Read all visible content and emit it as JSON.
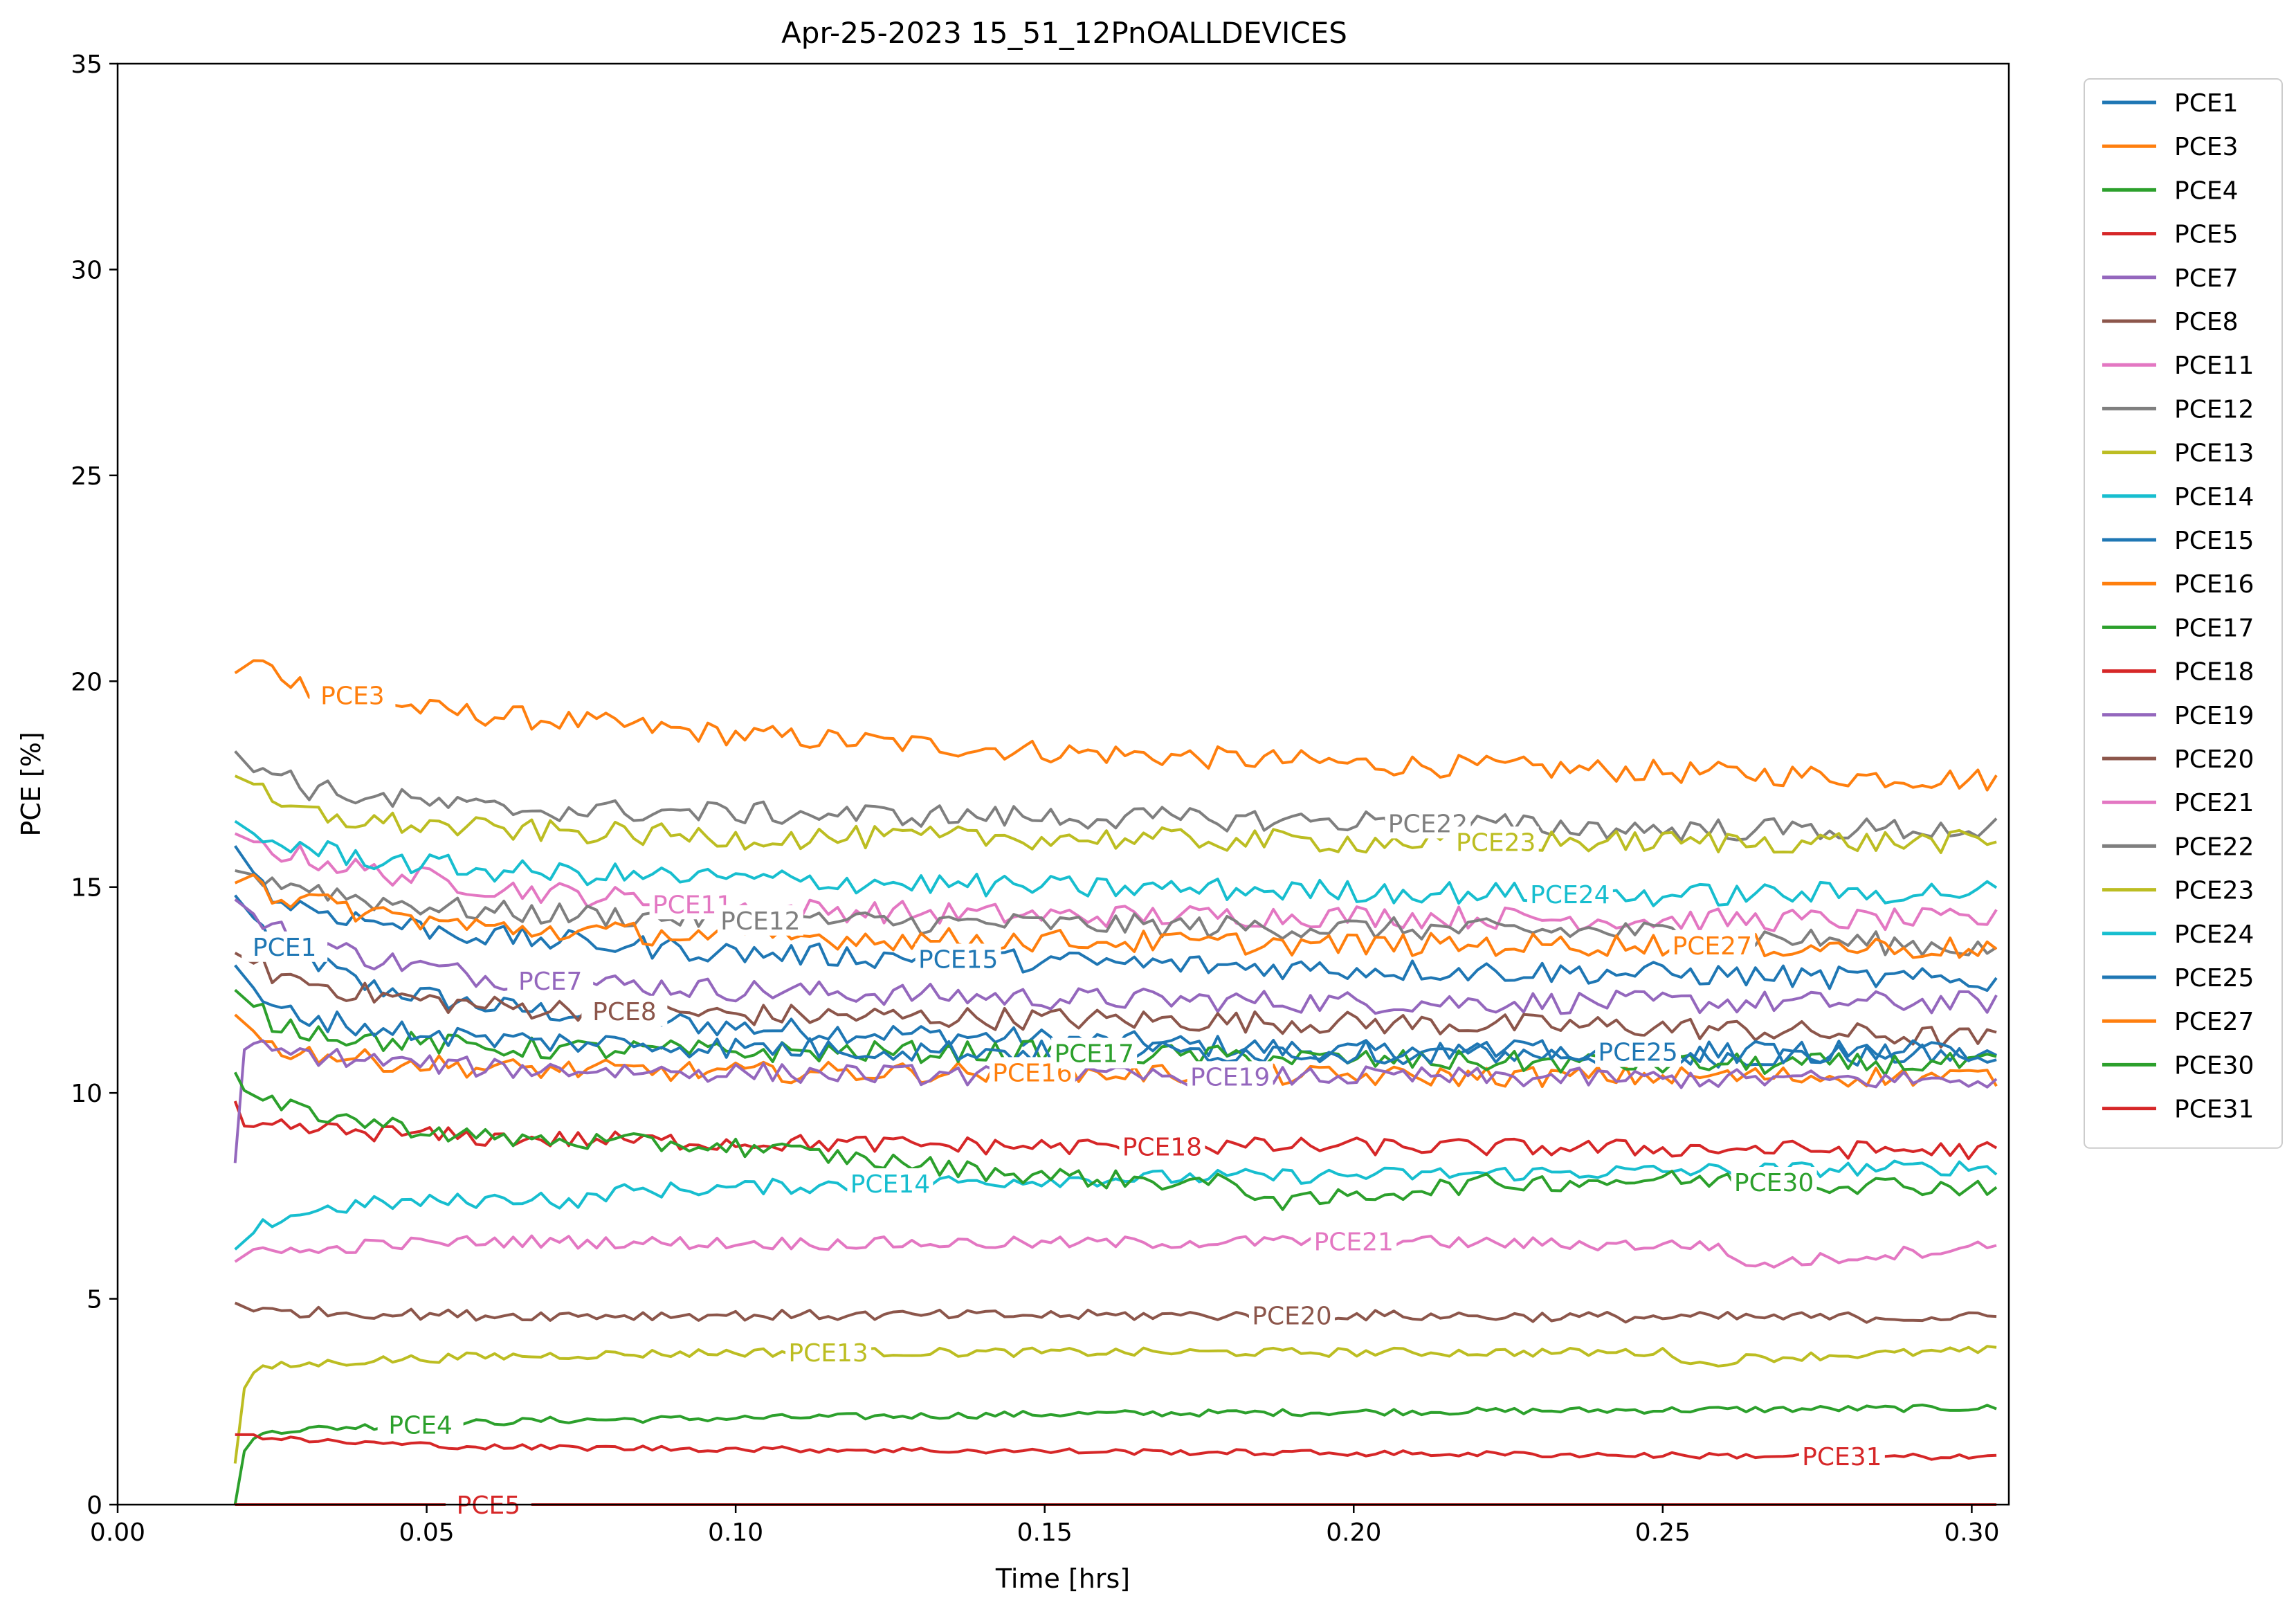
{
  "chart_data": {
    "type": "line",
    "title": "Apr-25-2023 15_51_12PnOALLDEVICES",
    "xlabel": "Time [hrs]",
    "ylabel": "PCE [%]",
    "xlim": [
      0.0,
      0.306
    ],
    "ylim": [
      0,
      35
    ],
    "xticks": [
      "0.00",
      "0.05",
      "0.10",
      "0.15",
      "0.20",
      "0.25",
      "0.30"
    ],
    "yticks": [
      "0",
      "5",
      "10",
      "15",
      "20",
      "25",
      "30",
      "35"
    ],
    "grid": false,
    "legend_position": "outside-right",
    "series": [
      {
        "name": "PCE1",
        "color": "#1f77b4",
        "label": "PCE1",
        "x": [
          0.019,
          0.025,
          0.04,
          0.06,
          0.1,
          0.15,
          0.2,
          0.25,
          0.304
        ],
        "y": [
          14.8,
          13.7,
          12.6,
          12.1,
          11.6,
          11.3,
          11.0,
          10.9,
          10.9
        ],
        "label_x": 0.027
      },
      {
        "name": "PCE3",
        "color": "#ff7f0e",
        "label": "PCE3",
        "x": [
          0.019,
          0.022,
          0.03,
          0.05,
          0.1,
          0.15,
          0.2,
          0.25,
          0.304
        ],
        "y": [
          20.2,
          20.5,
          19.9,
          19.3,
          18.7,
          18.3,
          18.0,
          17.8,
          17.6
        ],
        "label_x": 0.038
      },
      {
        "name": "PCE4",
        "color": "#2ca02c",
        "label": "PCE4",
        "x": [
          0.019,
          0.02,
          0.022,
          0.025,
          0.04,
          0.07,
          0.1,
          0.15,
          0.2,
          0.25,
          0.304
        ],
        "y": [
          0.0,
          1.2,
          1.6,
          1.8,
          1.9,
          2.05,
          2.1,
          2.2,
          2.25,
          2.3,
          2.35
        ],
        "label_x": 0.049
      },
      {
        "name": "PCE5",
        "color": "#d62728",
        "label": "PCE5",
        "x": [
          0.019,
          0.304
        ],
        "y": [
          0.0,
          0.0
        ],
        "label_x": 0.06
      },
      {
        "name": "PCE7",
        "color": "#9467bd",
        "label": "PCE7",
        "x": [
          0.019,
          0.025,
          0.04,
          0.06,
          0.1,
          0.15,
          0.2,
          0.25,
          0.304
        ],
        "y": [
          14.7,
          14.0,
          13.3,
          12.8,
          12.5,
          12.3,
          12.2,
          12.2,
          12.2
        ],
        "label_x": 0.07
      },
      {
        "name": "PCE8",
        "color": "#8c564b",
        "label": "PCE8",
        "x": [
          0.019,
          0.025,
          0.04,
          0.06,
          0.1,
          0.15,
          0.2,
          0.25,
          0.304
        ],
        "y": [
          13.4,
          12.9,
          12.4,
          12.1,
          11.9,
          11.8,
          11.7,
          11.6,
          11.3
        ],
        "label_x": 0.082
      },
      {
        "name": "PCE11",
        "color": "#e377c2",
        "label": "PCE11",
        "x": [
          0.019,
          0.025,
          0.04,
          0.06,
          0.1,
          0.15,
          0.2,
          0.25,
          0.304
        ],
        "y": [
          16.3,
          15.9,
          15.4,
          15.0,
          14.5,
          14.3,
          14.3,
          14.2,
          14.2
        ],
        "label_x": 0.093
      },
      {
        "name": "PCE12",
        "color": "#7f7f7f",
        "label": "PCE12",
        "x": [
          0.019,
          0.025,
          0.04,
          0.06,
          0.1,
          0.15,
          0.2,
          0.25,
          0.304
        ],
        "y": [
          15.4,
          15.2,
          14.7,
          14.4,
          14.2,
          14.1,
          14.0,
          13.9,
          13.5
        ],
        "label_x": 0.104
      },
      {
        "name": "PCE13",
        "color": "#bcbd22",
        "label": "PCE13",
        "x": [
          0.019,
          0.02,
          0.022,
          0.025,
          0.03,
          0.04,
          0.06,
          0.1,
          0.15,
          0.2,
          0.25,
          0.258,
          0.262,
          0.304
        ],
        "y": [
          1.0,
          2.7,
          3.2,
          3.35,
          3.4,
          3.5,
          3.6,
          3.7,
          3.7,
          3.7,
          3.7,
          3.35,
          3.55,
          3.75
        ],
        "label_x": 0.115
      },
      {
        "name": "PCE14",
        "color": "#17becf",
        "label": "PCE14",
        "x": [
          0.019,
          0.022,
          0.025,
          0.03,
          0.04,
          0.06,
          0.07,
          0.071,
          0.08,
          0.1,
          0.15,
          0.2,
          0.25,
          0.304
        ],
        "y": [
          6.2,
          6.6,
          6.9,
          7.1,
          7.3,
          7.4,
          7.5,
          7.2,
          7.6,
          7.7,
          7.9,
          8.0,
          8.1,
          8.2
        ],
        "label_x": 0.125
      },
      {
        "name": "PCE15",
        "color": "#1f77b4",
        "label": "PCE15",
        "x": [
          0.019,
          0.025,
          0.04,
          0.06,
          0.1,
          0.15,
          0.2,
          0.25,
          0.304
        ],
        "y": [
          16.0,
          14.7,
          14.2,
          13.8,
          13.4,
          13.2,
          13.0,
          12.9,
          12.7
        ],
        "label_x": 0.136
      },
      {
        "name": "PCE16",
        "color": "#ff7f0e",
        "label": "PCE16",
        "x": [
          0.019,
          0.025,
          0.04,
          0.06,
          0.1,
          0.15,
          0.2,
          0.25,
          0.304
        ],
        "y": [
          11.9,
          11.1,
          10.8,
          10.6,
          10.5,
          10.5,
          10.4,
          10.4,
          10.4
        ],
        "label_x": 0.148
      },
      {
        "name": "PCE17",
        "color": "#2ca02c",
        "label": "PCE17",
        "x": [
          0.019,
          0.025,
          0.04,
          0.06,
          0.1,
          0.15,
          0.2,
          0.25,
          0.304
        ],
        "y": [
          12.5,
          11.7,
          11.3,
          11.1,
          11.0,
          11.0,
          10.8,
          10.7,
          10.7
        ],
        "label_x": 0.158
      },
      {
        "name": "PCE18",
        "color": "#d62728",
        "label": "PCE18",
        "x": [
          0.019,
          0.02,
          0.025,
          0.04,
          0.06,
          0.1,
          0.15,
          0.2,
          0.25,
          0.304
        ],
        "y": [
          9.8,
          9.2,
          9.15,
          9.05,
          8.9,
          8.8,
          8.7,
          8.7,
          8.65,
          8.6
        ],
        "label_x": 0.169
      },
      {
        "name": "PCE19",
        "color": "#9467bd",
        "label": "PCE19",
        "x": [
          0.019,
          0.02,
          0.022,
          0.025,
          0.04,
          0.06,
          0.1,
          0.15,
          0.2,
          0.25,
          0.304
        ],
        "y": [
          8.3,
          11.0,
          11.2,
          11.0,
          10.8,
          10.6,
          10.5,
          10.4,
          10.4,
          10.35,
          10.3
        ],
        "label_x": 0.18
      },
      {
        "name": "PCE20",
        "color": "#8c564b",
        "label": "PCE20",
        "x": [
          0.019,
          0.022,
          0.04,
          0.06,
          0.1,
          0.15,
          0.2,
          0.25,
          0.304
        ],
        "y": [
          4.9,
          4.7,
          4.65,
          4.6,
          4.6,
          4.6,
          4.6,
          4.55,
          4.55
        ],
        "label_x": 0.19
      },
      {
        "name": "PCE21",
        "color": "#e377c2",
        "label": "PCE21",
        "x": [
          0.019,
          0.022,
          0.025,
          0.03,
          0.04,
          0.06,
          0.1,
          0.15,
          0.2,
          0.25,
          0.26,
          0.262,
          0.304
        ],
        "y": [
          5.9,
          6.2,
          6.3,
          6.1,
          6.3,
          6.4,
          6.35,
          6.35,
          6.4,
          6.3,
          6.3,
          5.8,
          6.3
        ],
        "label_x": 0.2
      },
      {
        "name": "PCE22",
        "color": "#7f7f7f",
        "label": "PCE22",
        "x": [
          0.019,
          0.022,
          0.025,
          0.03,
          0.04,
          0.06,
          0.1,
          0.15,
          0.2,
          0.25,
          0.304
        ],
        "y": [
          18.3,
          17.8,
          18.0,
          17.4,
          17.2,
          16.9,
          16.8,
          16.7,
          16.6,
          16.4,
          16.4
        ],
        "label_x": 0.212
      },
      {
        "name": "PCE23",
        "color": "#bcbd22",
        "label": "PCE23",
        "x": [
          0.019,
          0.022,
          0.025,
          0.03,
          0.04,
          0.06,
          0.1,
          0.15,
          0.2,
          0.25,
          0.3,
          0.304
        ],
        "y": [
          17.7,
          17.5,
          17.0,
          16.8,
          16.6,
          16.4,
          16.2,
          16.2,
          16.1,
          16.1,
          16.1,
          16.0
        ],
        "label_x": 0.223
      },
      {
        "name": "PCE24",
        "color": "#17becf",
        "label": "PCE24",
        "x": [
          0.019,
          0.022,
          0.025,
          0.04,
          0.06,
          0.1,
          0.15,
          0.2,
          0.25,
          0.304
        ],
        "y": [
          16.6,
          16.3,
          16.1,
          15.7,
          15.4,
          15.2,
          15.0,
          14.9,
          14.8,
          14.9
        ],
        "label_x": 0.235
      },
      {
        "name": "PCE25",
        "color": "#1f77b4",
        "label": "PCE25",
        "x": [
          0.019,
          0.025,
          0.04,
          0.06,
          0.1,
          0.15,
          0.2,
          0.25,
          0.304
        ],
        "y": [
          13.1,
          12.0,
          11.6,
          11.3,
          11.1,
          11.0,
          11.0,
          11.0,
          11.0
        ],
        "label_x": 0.246
      },
      {
        "name": "PCE27",
        "color": "#ff7f0e",
        "label": "PCE27",
        "x": [
          0.019,
          0.022,
          0.025,
          0.04,
          0.06,
          0.1,
          0.15,
          0.2,
          0.25,
          0.304
        ],
        "y": [
          15.1,
          15.3,
          14.8,
          14.4,
          14.0,
          13.8,
          13.7,
          13.6,
          13.6,
          13.5
        ],
        "label_x": 0.258
      },
      {
        "name": "PCE30",
        "color": "#2ca02c",
        "label": "PCE30",
        "x": [
          0.019,
          0.02,
          0.025,
          0.04,
          0.06,
          0.1,
          0.12,
          0.14,
          0.16,
          0.18,
          0.19,
          0.2,
          0.22,
          0.25,
          0.304
        ],
        "y": [
          10.5,
          10.1,
          9.7,
          9.3,
          8.9,
          8.7,
          8.4,
          8.1,
          7.9,
          7.8,
          7.3,
          7.5,
          7.8,
          7.9,
          7.7
        ],
        "label_x": 0.268
      },
      {
        "name": "PCE31",
        "color": "#d62728",
        "label": "PCE31",
        "x": [
          0.019,
          0.022,
          0.025,
          0.04,
          0.06,
          0.1,
          0.15,
          0.2,
          0.25,
          0.304
        ],
        "y": [
          1.7,
          1.7,
          1.6,
          1.5,
          1.4,
          1.35,
          1.3,
          1.25,
          1.2,
          1.15
        ],
        "label_x": 0.279
      }
    ]
  }
}
